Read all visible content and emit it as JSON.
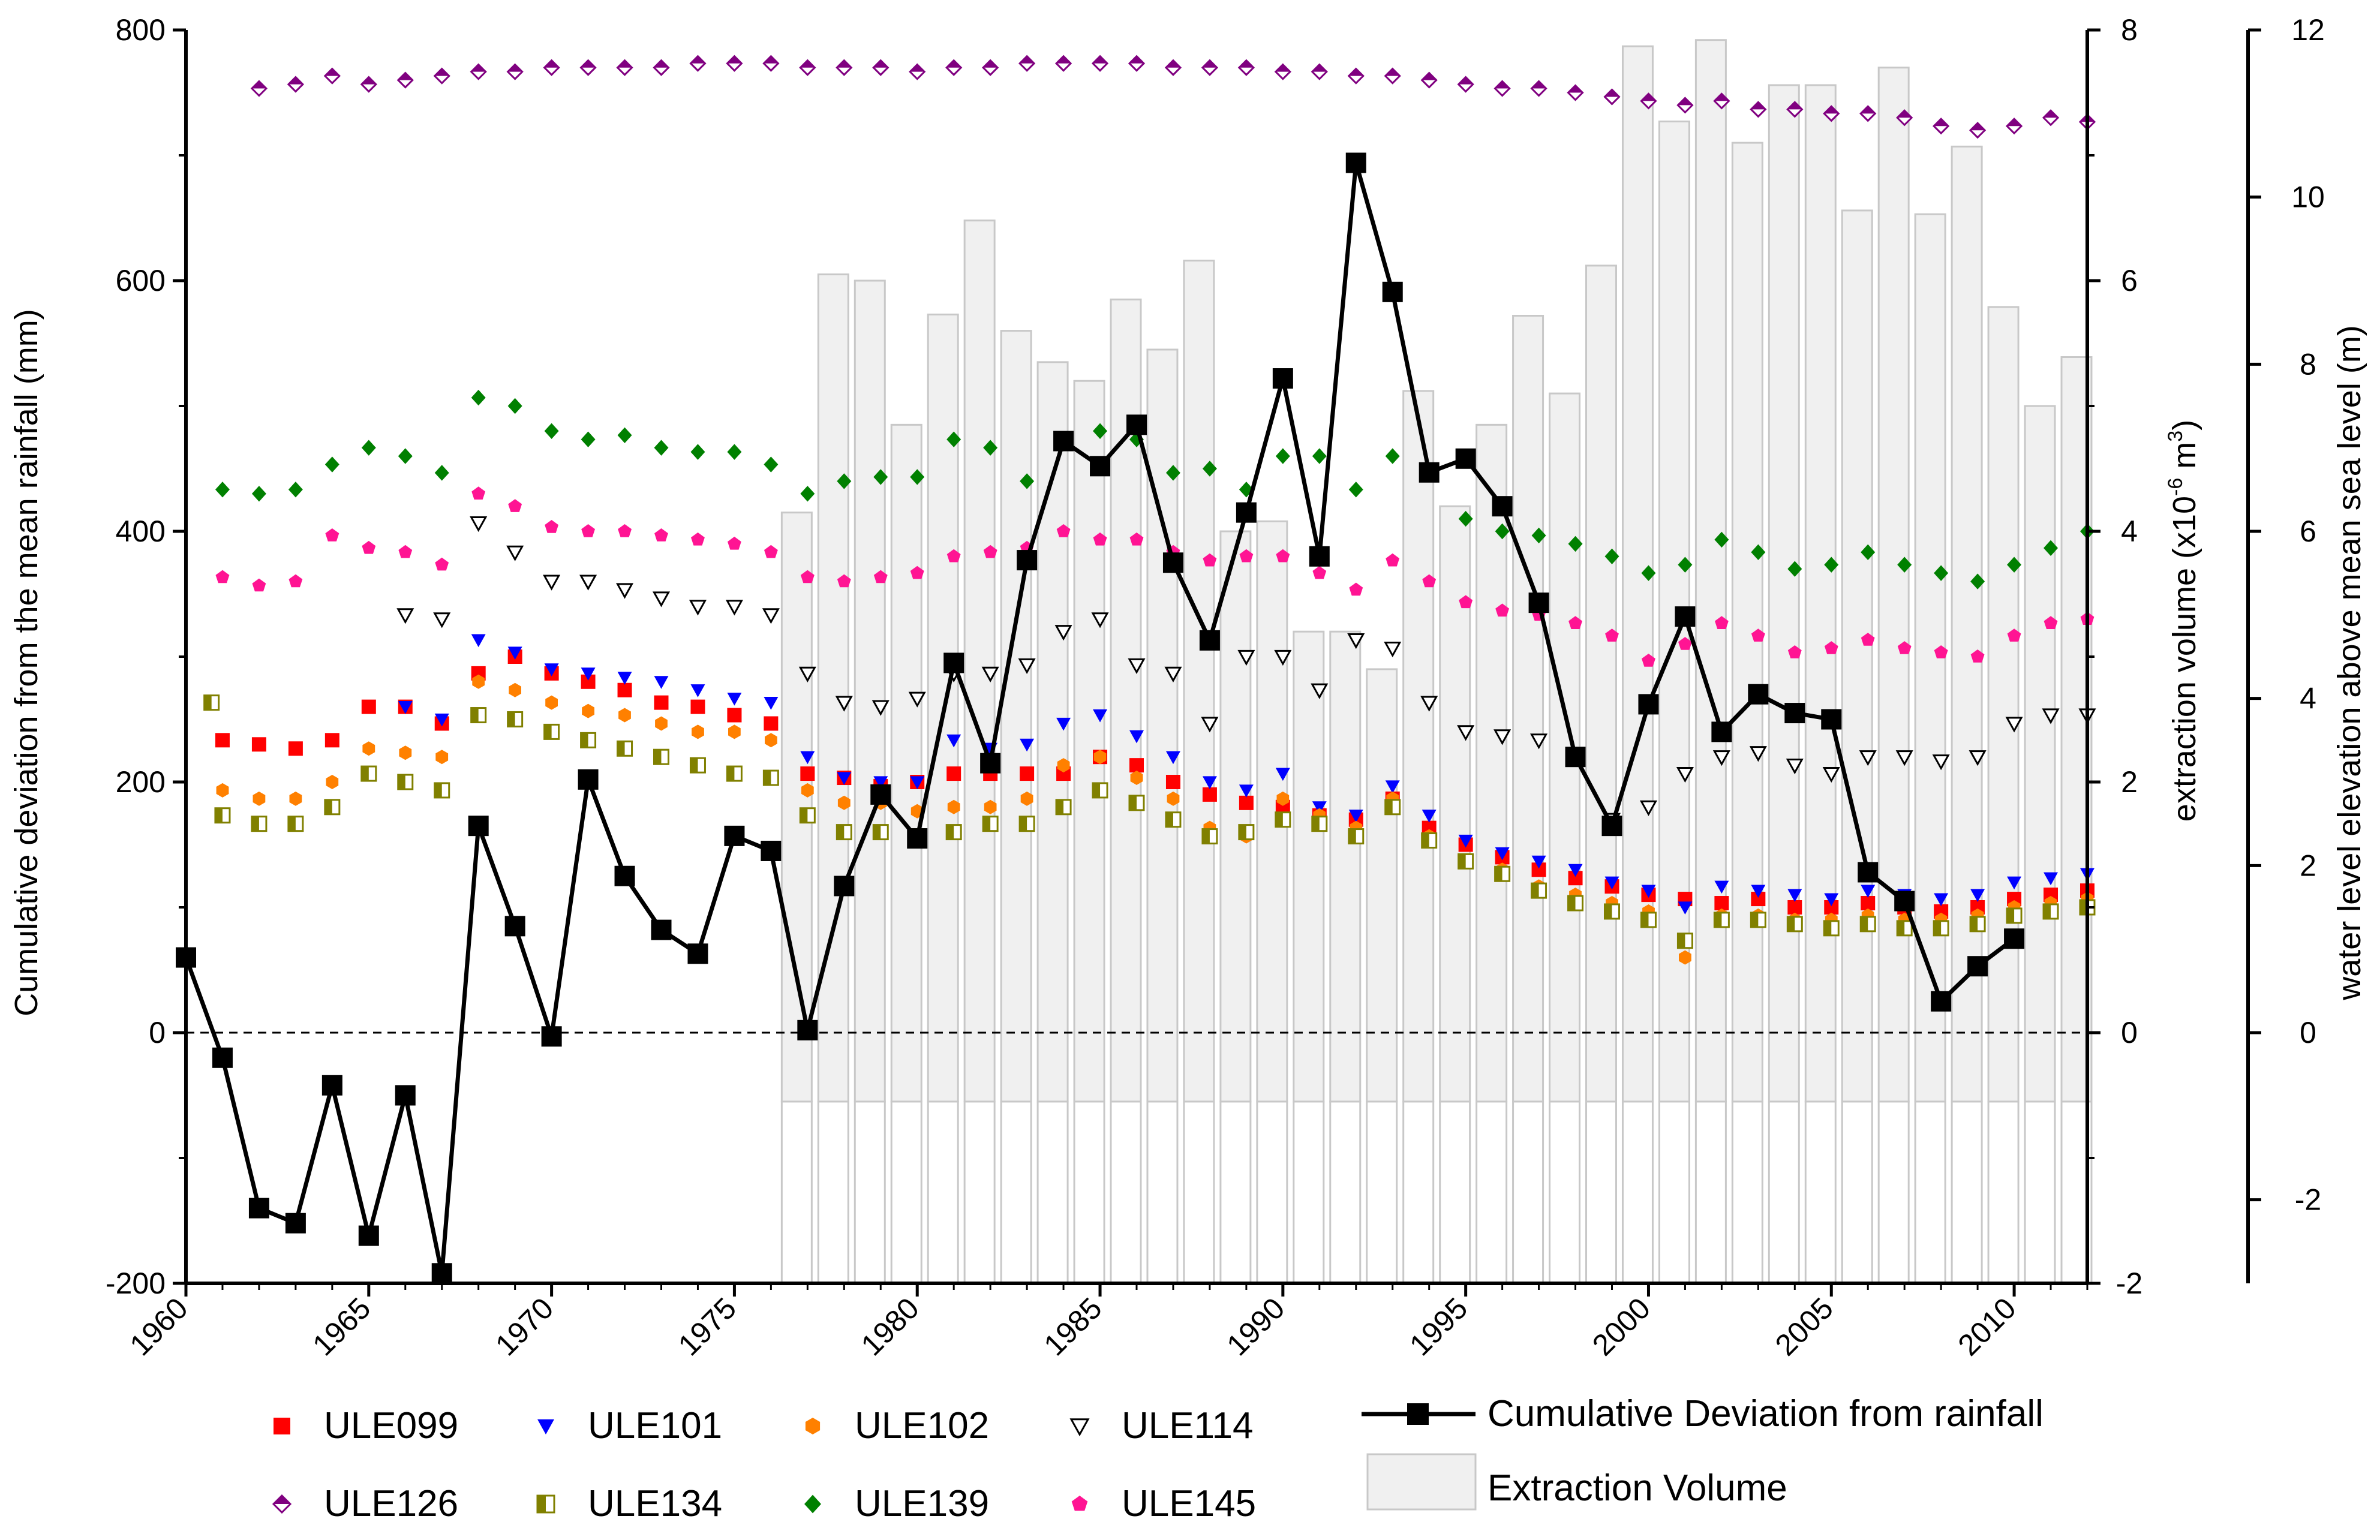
{
  "chart_data": {
    "type": "line",
    "title": "",
    "xlabel": "",
    "ylabel_left": "Cumulative deviation from the mean rainfall (mm)",
    "ylabel_right1": "extraction volume (x10⁻⁶ m³)",
    "ylabel_right1_parts": {
      "base": "extraction volume (x10",
      "exp1": "-6",
      "mid": " m",
      "exp2": "3",
      "end": ")"
    },
    "ylabel_right2": "water level elevation above mean sea level (m)",
    "xlim": [
      1960,
      2012
    ],
    "ylim_left": [
      -200,
      800
    ],
    "ylim_right1": [
      -2,
      8
    ],
    "ylim_right2": [
      -3,
      12
    ],
    "x_ticks": [
      "1960",
      "1965",
      "1970",
      "1975",
      "1980",
      "1985",
      "1990",
      "1995",
      "2000",
      "2005",
      "2010"
    ],
    "left_ticks": [
      "-200",
      "0",
      "200",
      "400",
      "600",
      "800"
    ],
    "right1_ticks": [
      "-2",
      "0",
      "2",
      "4",
      "6",
      "8"
    ],
    "right2_ticks": [
      "-2",
      "0",
      "2",
      "4",
      "6",
      "8",
      "10",
      "12"
    ],
    "zero_line": "dashed",
    "legend": {
      "placement": "bottom",
      "items": [
        "ULE099",
        "ULE101",
        "ULE102",
        "ULE114",
        "ULE126",
        "ULE134",
        "ULE139",
        "ULE145",
        "Cumulative Deviation from rainfall",
        "Extraction Volume"
      ]
    },
    "rainfall_deviation": {
      "name": "Cumulative Deviation from rainfall",
      "axis": "left",
      "color": "#000000",
      "x": [
        1960,
        1961,
        1962,
        1963,
        1964,
        1965,
        1966,
        1967,
        1968,
        1969,
        1970,
        1971,
        1972,
        1973,
        1974,
        1975,
        1976,
        1977,
        1978,
        1979,
        1980,
        1981,
        1982,
        1983,
        1984,
        1985,
        1986,
        1987,
        1988,
        1989,
        1990,
        1991,
        1992,
        1993,
        1994,
        1995,
        1996,
        1997,
        1998,
        1999,
        2000,
        2001,
        2002,
        2003,
        2004,
        2005,
        2006,
        2007,
        2008,
        2009,
        2010
      ],
      "values": [
        60,
        -20,
        -140,
        -152,
        -42,
        -162,
        -50,
        -192,
        165,
        85,
        -3,
        202,
        125,
        82,
        63,
        157,
        145,
        2,
        117,
        190,
        155,
        295,
        215,
        377,
        472,
        452,
        485,
        375,
        313,
        415,
        522,
        380,
        694,
        591,
        447,
        458,
        420,
        343,
        220,
        165,
        262,
        332,
        240,
        270,
        255,
        250,
        128,
        105,
        25,
        53,
        75
      ]
    },
    "extraction_volume": {
      "name": "Extraction Volume",
      "axis": "right1",
      "color": "#f0f0f0",
      "x": [
        1977,
        1978,
        1979,
        1980,
        1981,
        1982,
        1983,
        1984,
        1985,
        1986,
        1987,
        1988,
        1989,
        1990,
        1991,
        1992,
        1993,
        1994,
        1995,
        1996,
        1997,
        1998,
        1999,
        2000,
        2001,
        2002,
        2003,
        2004,
        2005,
        2006,
        2007,
        2008,
        2009,
        2010,
        2011,
        2012
      ],
      "values": [
        4.15,
        6.05,
        6.0,
        4.85,
        5.73,
        6.48,
        5.6,
        5.35,
        5.2,
        5.85,
        5.45,
        6.16,
        4.0,
        4.08,
        3.2,
        3.2,
        2.9,
        5.12,
        4.2,
        4.85,
        5.72,
        5.1,
        6.12,
        7.87,
        7.27,
        7.92,
        7.1,
        7.56,
        7.56,
        6.56,
        7.7,
        6.53,
        7.07,
        5.79,
        5.0,
        5.39
      ]
    },
    "series": [
      {
        "name": "ULE099",
        "axis": "right2",
        "color": "#ff0000",
        "marker": "square",
        "x": [
          1961,
          1962,
          1963,
          1964,
          1965,
          1966,
          1967,
          1968,
          1969,
          1970,
          1971,
          1972,
          1973,
          1974,
          1975,
          1976,
          1977,
          1978,
          1979,
          1980,
          1981,
          1982,
          1983,
          1984,
          1985,
          1986,
          1987,
          1988,
          1989,
          1990,
          1991,
          1992,
          1993,
          1994,
          1995,
          1996,
          1997,
          1998,
          1999,
          2000,
          2001,
          2002,
          2003,
          2004,
          2005,
          2006,
          2007,
          2008,
          2009,
          2010,
          2011,
          2012
        ],
        "values": [
          3.5,
          3.45,
          3.4,
          3.5,
          3.9,
          3.9,
          3.7,
          4.3,
          4.5,
          4.3,
          4.2,
          4.1,
          3.95,
          3.9,
          3.8,
          3.7,
          3.1,
          3.05,
          2.95,
          3.0,
          3.1,
          3.1,
          3.1,
          3.1,
          3.3,
          3.2,
          3.0,
          2.85,
          2.75,
          2.7,
          2.6,
          2.55,
          2.8,
          2.45,
          2.25,
          2.1,
          1.95,
          1.85,
          1.75,
          1.65,
          1.6,
          1.55,
          1.6,
          1.5,
          1.5,
          1.55,
          1.5,
          1.45,
          1.5,
          1.6,
          1.65,
          1.7
        ]
      },
      {
        "name": "ULE101",
        "axis": "right2",
        "color": "#0000ff",
        "marker": "triangle-down",
        "x": [
          1966,
          1967,
          1968,
          1969,
          1970,
          1971,
          1972,
          1973,
          1974,
          1975,
          1976,
          1977,
          1978,
          1979,
          1980,
          1981,
          1982,
          1983,
          1984,
          1985,
          1986,
          1987,
          1988,
          1989,
          1990,
          1991,
          1992,
          1993,
          1994,
          1995,
          1996,
          1997,
          1998,
          1999,
          2000,
          2001,
          2002,
          2003,
          2004,
          2005,
          2006,
          2007,
          2008,
          2009,
          2010,
          2011,
          2012
        ],
        "values": [
          3.9,
          3.75,
          4.7,
          4.55,
          4.35,
          4.3,
          4.25,
          4.2,
          4.1,
          4.0,
          3.95,
          3.3,
          3.05,
          3.0,
          3.0,
          3.5,
          3.4,
          3.45,
          3.7,
          3.8,
          3.55,
          3.3,
          3.0,
          2.9,
          3.1,
          2.7,
          2.6,
          2.95,
          2.6,
          2.3,
          2.15,
          2.05,
          1.95,
          1.8,
          1.7,
          1.5,
          1.75,
          1.7,
          1.65,
          1.6,
          1.7,
          1.65,
          1.6,
          1.65,
          1.8,
          1.85,
          1.9
        ]
      },
      {
        "name": "ULE102",
        "axis": "right2",
        "color": "#ff8000",
        "marker": "hexagon",
        "x": [
          1961,
          1962,
          1963,
          1964,
          1965,
          1966,
          1967,
          1968,
          1969,
          1970,
          1971,
          1972,
          1973,
          1974,
          1975,
          1976,
          1977,
          1978,
          1979,
          1980,
          1981,
          1982,
          1983,
          1984,
          1985,
          1986,
          1987,
          1988,
          1989,
          1990,
          1991,
          1992,
          1993,
          1994,
          1995,
          1996,
          1997,
          1998,
          1999,
          2000,
          2001,
          2002,
          2003,
          2004,
          2005,
          2006,
          2007,
          2008,
          2009,
          2010,
          2011,
          2012
        ],
        "values": [
          2.9,
          2.8,
          2.8,
          3.0,
          3.4,
          3.35,
          3.3,
          4.2,
          4.1,
          3.95,
          3.85,
          3.8,
          3.7,
          3.6,
          3.6,
          3.5,
          2.9,
          2.75,
          2.75,
          2.65,
          2.7,
          2.7,
          2.8,
          3.2,
          3.3,
          3.05,
          2.8,
          2.45,
          2.35,
          2.8,
          2.6,
          2.45,
          2.8,
          2.35,
          2.05,
          1.95,
          1.75,
          1.65,
          1.55,
          1.45,
          0.9,
          1.4,
          1.4,
          1.35,
          1.35,
          1.4,
          1.35,
          1.35,
          1.4,
          1.5,
          1.55,
          1.6
        ]
      },
      {
        "name": "ULE114",
        "axis": "right2",
        "color": "#000000",
        "marker": "triangle-down-open",
        "x": [
          1966,
          1967,
          1968,
          1969,
          1970,
          1971,
          1972,
          1973,
          1974,
          1975,
          1976,
          1977,
          1978,
          1979,
          1980,
          1981,
          1982,
          1983,
          1984,
          1985,
          1986,
          1987,
          1988,
          1989,
          1990,
          1991,
          1992,
          1993,
          1994,
          1995,
          1996,
          1997,
          1998,
          1999,
          2000,
          2001,
          2002,
          2003,
          2004,
          2005,
          2006,
          2007,
          2008,
          2009,
          2010,
          2011,
          2012
        ],
        "values": [
          5.0,
          4.95,
          6.1,
          5.75,
          5.4,
          5.4,
          5.3,
          5.2,
          5.1,
          5.1,
          5.0,
          4.3,
          3.95,
          3.9,
          4.0,
          4.3,
          4.3,
          4.4,
          4.8,
          4.95,
          4.4,
          4.3,
          3.7,
          4.5,
          4.5,
          4.1,
          4.7,
          4.6,
          3.95,
          3.6,
          3.55,
          3.5,
          3.3,
          2.55,
          2.7,
          3.1,
          3.3,
          3.35,
          3.2,
          3.1,
          3.3,
          3.3,
          3.25,
          3.3,
          3.7,
          3.8,
          3.8
        ]
      },
      {
        "name": "ULE126",
        "axis": "right2",
        "color": "#800080",
        "marker": "diamond-half",
        "x": [
          1962,
          1963,
          1964,
          1965,
          1966,
          1967,
          1968,
          1969,
          1970,
          1971,
          1972,
          1973,
          1974,
          1975,
          1976,
          1977,
          1978,
          1979,
          1980,
          1981,
          1982,
          1983,
          1984,
          1985,
          1986,
          1987,
          1988,
          1989,
          1990,
          1991,
          1992,
          1993,
          1994,
          1995,
          1996,
          1997,
          1998,
          1999,
          2000,
          2001,
          2002,
          2003,
          2004,
          2005,
          2006,
          2007,
          2008,
          2009,
          2010,
          2011,
          2012
        ],
        "values": [
          11.3,
          11.35,
          11.45,
          11.35,
          11.4,
          11.45,
          11.5,
          11.5,
          11.55,
          11.55,
          11.55,
          11.55,
          11.6,
          11.6,
          11.6,
          11.55,
          11.55,
          11.55,
          11.5,
          11.55,
          11.55,
          11.6,
          11.6,
          11.6,
          11.6,
          11.55,
          11.55,
          11.55,
          11.5,
          11.5,
          11.45,
          11.45,
          11.4,
          11.35,
          11.3,
          11.3,
          11.25,
          11.2,
          11.15,
          11.1,
          11.15,
          11.05,
          11.05,
          11.0,
          11.0,
          10.95,
          10.85,
          10.8,
          10.85,
          10.95,
          10.9
        ]
      },
      {
        "name": "ULE134",
        "axis": "right2",
        "color": "#808000",
        "marker": "square-half",
        "x": [
          1960.7,
          1961,
          1962,
          1963,
          1964,
          1965,
          1966,
          1967,
          1968,
          1969,
          1970,
          1971,
          1972,
          1973,
          1974,
          1975,
          1976,
          1977,
          1978,
          1979,
          1980,
          1981,
          1982,
          1983,
          1984,
          1985,
          1986,
          1987,
          1988,
          1989,
          1990,
          1991,
          1992,
          1993,
          1994,
          1995,
          1996,
          1997,
          1998,
          1999,
          2000,
          2001,
          2002,
          2003,
          2004,
          2005,
          2006,
          2007,
          2008,
          2009,
          2010,
          2011,
          2012
        ],
        "values": [
          3.95,
          2.6,
          2.5,
          2.5,
          2.7,
          3.1,
          3.0,
          2.9,
          3.8,
          3.75,
          3.6,
          3.5,
          3.4,
          3.3,
          3.2,
          3.1,
          3.05,
          2.6,
          2.4,
          2.4,
          2.35,
          2.4,
          2.5,
          2.5,
          2.7,
          2.9,
          2.75,
          2.55,
          2.35,
          2.4,
          2.55,
          2.5,
          2.35,
          2.7,
          2.3,
          2.05,
          1.9,
          1.7,
          1.55,
          1.45,
          1.35,
          1.1,
          1.35,
          1.35,
          1.3,
          1.25,
          1.3,
          1.25,
          1.25,
          1.3,
          1.4,
          1.45,
          1.5
        ]
      },
      {
        "name": "ULE139",
        "axis": "right2",
        "color": "#008000",
        "marker": "diamond",
        "x": [
          1961,
          1962,
          1963,
          1964,
          1965,
          1966,
          1967,
          1968,
          1969,
          1970,
          1971,
          1972,
          1973,
          1974,
          1975,
          1976,
          1977,
          1978,
          1979,
          1980,
          1981,
          1982,
          1983,
          1984,
          1985,
          1986,
          1987,
          1988,
          1989,
          1990,
          1991,
          1992,
          1993,
          1994,
          1995,
          1996,
          1997,
          1998,
          1999,
          2000,
          2001,
          2002,
          2003,
          2004,
          2005,
          2006,
          2007,
          2008,
          2009,
          2010,
          2011,
          2012
        ],
        "values": [
          6.5,
          6.45,
          6.5,
          6.8,
          7.0,
          6.9,
          6.7,
          7.6,
          7.5,
          7.2,
          7.1,
          7.15,
          7.0,
          6.95,
          6.95,
          6.8,
          6.45,
          6.6,
          6.65,
          6.65,
          7.1,
          7.0,
          6.6,
          7.05,
          7.2,
          7.1,
          6.7,
          6.75,
          6.5,
          6.9,
          6.9,
          6.5,
          6.9,
          6.7,
          6.15,
          6.0,
          5.95,
          5.85,
          5.7,
          5.5,
          5.6,
          5.9,
          5.75,
          5.55,
          5.6,
          5.75,
          5.6,
          5.5,
          5.4,
          5.6,
          5.8,
          6.0
        ]
      },
      {
        "name": "ULE145",
        "axis": "right2",
        "color": "#ff1493",
        "marker": "pentagon",
        "x": [
          1961,
          1962,
          1963,
          1964,
          1965,
          1966,
          1967,
          1968,
          1969,
          1970,
          1971,
          1972,
          1973,
          1974,
          1975,
          1976,
          1977,
          1978,
          1979,
          1980,
          1981,
          1982,
          1983,
          1984,
          1985,
          1986,
          1987,
          1988,
          1989,
          1990,
          1991,
          1992,
          1993,
          1994,
          1995,
          1996,
          1997,
          1998,
          1999,
          2000,
          2001,
          2002,
          2003,
          2004,
          2005,
          2006,
          2007,
          2008,
          2009,
          2010,
          2011,
          2012
        ],
        "values": [
          5.45,
          5.35,
          5.4,
          5.95,
          5.8,
          5.75,
          5.6,
          6.45,
          6.3,
          6.05,
          6.0,
          6.0,
          5.95,
          5.9,
          5.85,
          5.75,
          5.45,
          5.4,
          5.45,
          5.5,
          5.7,
          5.75,
          5.8,
          6.0,
          5.9,
          5.9,
          5.75,
          5.65,
          5.7,
          5.7,
          5.5,
          5.3,
          5.65,
          5.4,
          5.15,
          5.05,
          5.0,
          4.9,
          4.75,
          4.45,
          4.65,
          4.9,
          4.75,
          4.55,
          4.6,
          4.7,
          4.6,
          4.55,
          4.5,
          4.75,
          4.9,
          4.95
        ]
      }
    ]
  }
}
